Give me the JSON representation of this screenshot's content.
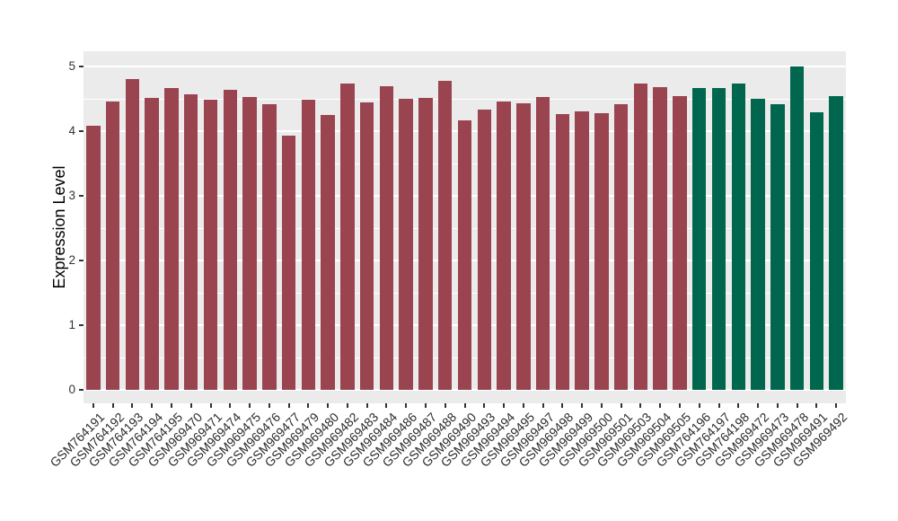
{
  "figure": {
    "background": "#FFFFFF",
    "panel_background": "#EBEBEB",
    "grid_color": "#FFFFFF",
    "tick_color": "#333333",
    "axis_text_color": "#2b2b2b"
  },
  "chart_data": {
    "type": "bar",
    "title": "",
    "xlabel": "",
    "ylabel": "Expression Level",
    "ylim": [
      0,
      5.25
    ],
    "yticks": [
      0,
      1,
      2,
      3,
      4,
      5
    ],
    "grid": true,
    "legend_position": "none",
    "categories": [
      "GSM764191",
      "GSM764192",
      "GSM764193",
      "GSM764194",
      "GSM764195",
      "GSM969470",
      "GSM969471",
      "GSM969474",
      "GSM969475",
      "GSM969476",
      "GSM969477",
      "GSM969479",
      "GSM969480",
      "GSM969482",
      "GSM969483",
      "GSM969484",
      "GSM969486",
      "GSM969487",
      "GSM969488",
      "GSM969490",
      "GSM969493",
      "GSM969494",
      "GSM969495",
      "GSM969497",
      "GSM969498",
      "GSM969499",
      "GSM969500",
      "GSM969501",
      "GSM969503",
      "GSM969504",
      "GSM969505",
      "GSM764196",
      "GSM764197",
      "GSM764198",
      "GSM969472",
      "GSM969473",
      "GSM969478",
      "GSM969491",
      "GSM969492"
    ],
    "values": [
      4.08,
      4.46,
      4.81,
      4.51,
      4.66,
      4.57,
      4.49,
      4.64,
      4.53,
      4.41,
      3.93,
      4.48,
      4.25,
      4.74,
      4.45,
      4.69,
      4.5,
      4.51,
      4.78,
      4.17,
      4.34,
      4.46,
      4.43,
      4.53,
      4.27,
      4.31,
      4.28,
      4.42,
      4.74,
      4.68,
      4.54,
      4.66,
      4.66,
      4.73,
      4.5,
      4.41,
      5.0,
      4.29,
      4.54
    ],
    "group_index": [
      0,
      0,
      0,
      0,
      0,
      0,
      0,
      0,
      0,
      0,
      0,
      0,
      0,
      0,
      0,
      0,
      0,
      0,
      0,
      0,
      0,
      0,
      0,
      0,
      0,
      0,
      0,
      0,
      0,
      0,
      0,
      1,
      1,
      1,
      1,
      1,
      1,
      1,
      1
    ],
    "group_colors": [
      "#9A4450",
      "#00664D"
    ]
  }
}
